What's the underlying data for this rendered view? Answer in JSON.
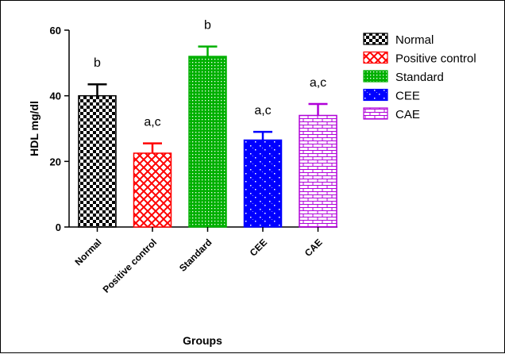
{
  "chart_data": {
    "type": "bar",
    "title": "",
    "xlabel": "Groups",
    "ylabel": "HDL mg/dl",
    "ylim": [
      0,
      60
    ],
    "yticks": [
      0,
      20,
      40,
      60
    ],
    "categories": [
      "Normal",
      "Positive control",
      "Standard",
      "CEE",
      "CAE"
    ],
    "values": [
      40,
      22.5,
      52,
      26.5,
      34
    ],
    "errors": [
      3.5,
      3,
      3,
      2.5,
      3.5
    ],
    "significance": [
      "b",
      "a,c",
      "b",
      "a,c",
      "a,c"
    ],
    "legend": {
      "position": "right",
      "entries": [
        "Normal",
        "Positive control",
        "Standard",
        "CEE",
        "CAE"
      ]
    },
    "colors": [
      "#000000",
      "#ff0000",
      "#00b000",
      "#0000ff",
      "#b000d8"
    ],
    "patterns": [
      "checker",
      "crosshatch",
      "dots",
      "bricks-dots",
      "bricks"
    ],
    "grid": false
  }
}
